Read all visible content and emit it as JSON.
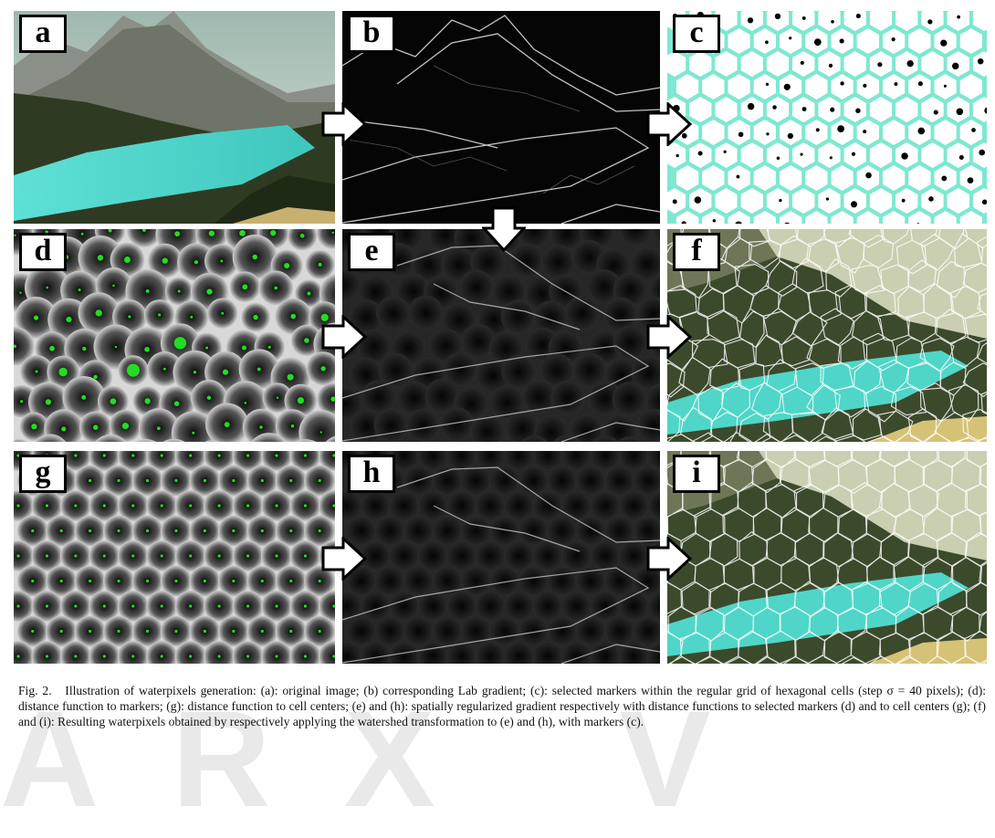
{
  "panels": [
    {
      "id": "a",
      "label": "a"
    },
    {
      "id": "b",
      "label": "b"
    },
    {
      "id": "c",
      "label": "c"
    },
    {
      "id": "d",
      "label": "d"
    },
    {
      "id": "e",
      "label": "e"
    },
    {
      "id": "f",
      "label": "f"
    },
    {
      "id": "g",
      "label": "g"
    },
    {
      "id": "h",
      "label": "h"
    },
    {
      "id": "i",
      "label": "i"
    }
  ],
  "caption": {
    "fig_label": "Fig. 2.",
    "text": "Illustration of waterpixels generation: (a): original image; (b) corresponding Lab gradient; (c): selected markers within the regular grid of hexagonal cells (step σ = 40 pixels); (d): distance function to markers; (g): distance function to cell centers; (e) and (h): spatially regularized gradient respectively with distance functions to selected markers (d) and to cell centers (g); (f) and (i): Resulting waterpixels obtained by respectively applying the watershed transformation to (e) and (h), with markers (c)."
  },
  "colors": {
    "water": "#4fd6c8",
    "marker": "#22dd22",
    "grid": "#7ee8d0"
  }
}
